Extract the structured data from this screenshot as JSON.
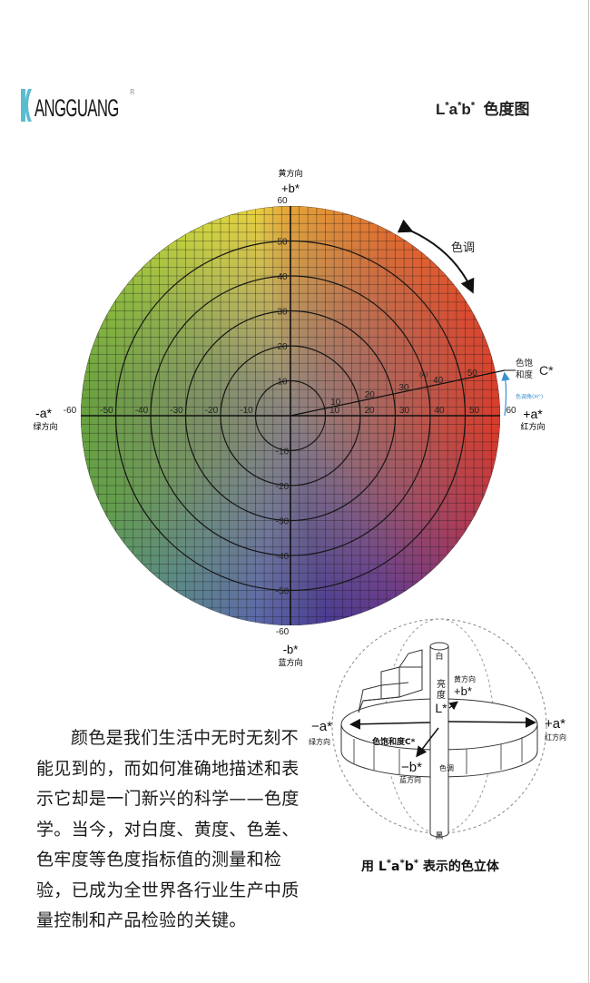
{
  "logo": {
    "text": "ANGGUANG",
    "registered": "R",
    "brand_color": "#5bbcd0"
  },
  "header": {
    "title_L": "L",
    "title_a": "a",
    "title_b": "b",
    "star": "*",
    "title_suffix": "色度图"
  },
  "chart_data": {
    "type": "diagram",
    "axis_range": [
      -60,
      60
    ],
    "ticks": [
      -60,
      -50,
      -40,
      -30,
      -20,
      -10,
      10,
      20,
      30,
      40,
      50,
      60
    ],
    "chroma_circles": [
      10,
      20,
      30,
      40,
      50
    ],
    "chroma_line_ticks": [
      10,
      20,
      30,
      40,
      50
    ],
    "chroma_point_label": "(A)",
    "axes": {
      "top": {
        "label": "+b*",
        "direction": "黄方向"
      },
      "bottom": {
        "label": "-b*",
        "direction": "蓝方向"
      },
      "left": {
        "label": "-a*",
        "direction": "绿方向"
      },
      "right": {
        "label": "+a*",
        "direction": "红方向"
      }
    },
    "hue_label": "色调",
    "chroma_label_line1": "色饱",
    "chroma_label_line2": "和度",
    "chroma_symbol": "C*",
    "hue_angle_label": "色调角(H°)",
    "colors": {
      "yellow": "#e8d840",
      "red": "#d83a2c",
      "blue": "#4a3a92",
      "green": "#6aa23e",
      "center": "#8a8282",
      "hue_angle": "#3a8fd0"
    }
  },
  "solid": {
    "white": "白",
    "black": "黑",
    "lightness_1": "亮",
    "lightness_2": "度",
    "lightness_symbol": "L*",
    "yellow_dir": "黄方向",
    "plus_b": "+b*",
    "minus_a": "−a*",
    "green_dir": "绿方向",
    "plus_a": "+a*",
    "red_dir": "红方向",
    "chroma": "色饱和度C*",
    "minus_b": "−b*",
    "blue_dir": "蓝方向",
    "hue": "色调",
    "caption_pre": "用 L",
    "caption_a": "a",
    "caption_b": "b",
    "caption_star": "*",
    "caption_post": " 表示的色立体"
  },
  "paragraph": "颜色是我们生活中无时无刻不能见到的，而如何准确地描述和表示它却是一门新兴的科学——色度学。当今，对白度、黄度、色差、色牢度等色度指标值的测量和检验，已成为全世界各行业生产中质量控制和产品检验的关键。"
}
